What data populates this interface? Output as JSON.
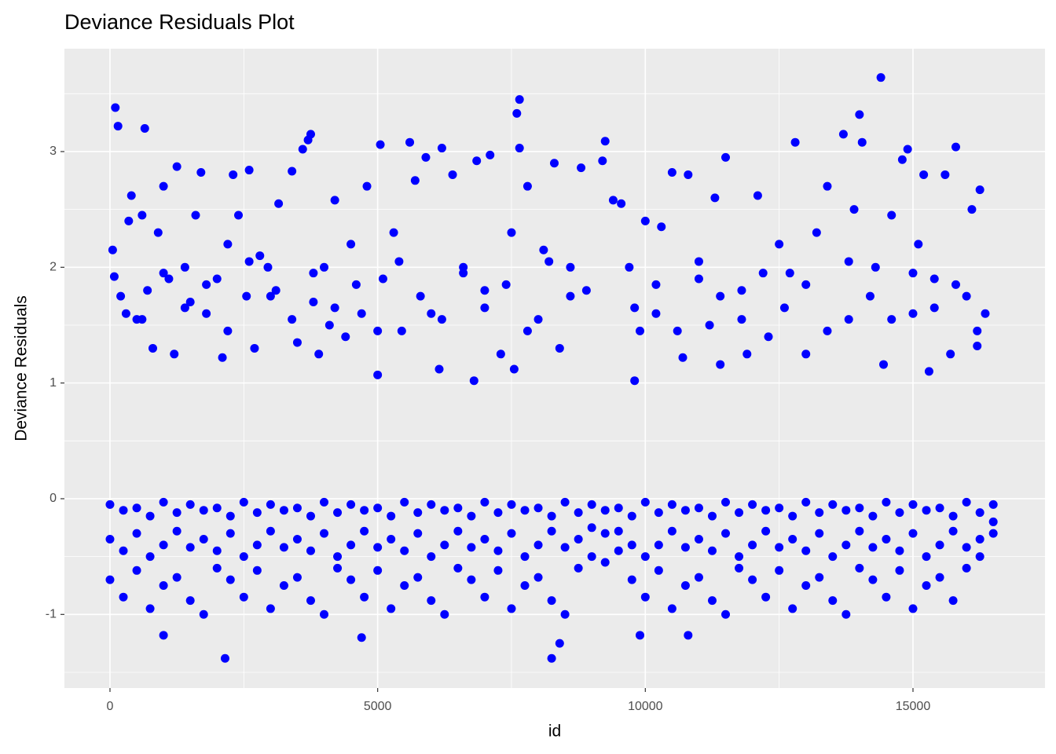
{
  "chart_data": {
    "type": "scatter",
    "title": "Deviance Residuals Plot",
    "x_label": "id",
    "y_label": "Deviance Residuals",
    "color": "#0000ff",
    "grid": true,
    "xlim": [
      -851,
      17466
    ],
    "ylim": [
      -1.636,
      3.889
    ],
    "xticks": [
      0,
      5000,
      10000,
      15000
    ],
    "yticks": [
      -1,
      0,
      1,
      2,
      3
    ],
    "x_minor_breaks": [
      2500,
      7500,
      12500
    ],
    "y_minor_breaks": [
      -1.5,
      -0.5,
      0.5,
      1.5,
      2.5,
      3.5
    ],
    "x": [
      100,
      150,
      650,
      50,
      80,
      300,
      350,
      400,
      500,
      600,
      700,
      800,
      900,
      1000,
      1100,
      1200,
      1250,
      1400,
      1500,
      1600,
      1700,
      1800,
      2000,
      2100,
      2200,
      2300,
      2400,
      2550,
      2600,
      2700,
      2800,
      2950,
      3100,
      3150,
      3400,
      3500,
      3600,
      3700,
      3750,
      3800,
      3900,
      4000,
      4100,
      4200,
      4400,
      4500,
      4700,
      4800,
      5000,
      5050,
      5100,
      5300,
      5450,
      5600,
      5700,
      5900,
      6000,
      6150,
      6200,
      6400,
      6600,
      6800,
      6850,
      7000,
      7100,
      7300,
      7500,
      7550,
      7600,
      7650,
      7650,
      7800,
      8000,
      8100,
      8300,
      8400,
      8600,
      8800,
      8900,
      9200,
      9250,
      9400,
      9550,
      9700,
      9800,
      9900,
      10000,
      10200,
      10300,
      10500,
      10700,
      10800,
      11000,
      11200,
      11300,
      11400,
      11500,
      11800,
      11900,
      12100,
      12300,
      12500,
      12700,
      12800,
      13000,
      13200,
      13400,
      13700,
      13800,
      13900,
      14000,
      14050,
      14300,
      14400,
      14450,
      14600,
      14800,
      14900,
      15000,
      15100,
      15200,
      15300,
      15400,
      15600,
      15700,
      15800,
      16000,
      16100,
      16200,
      16250,
      16350,
      200,
      600,
      1000,
      1400,
      1800,
      2200,
      2600,
      3000,
      3400,
      3800,
      4200,
      4600,
      5000,
      5400,
      5800,
      6200,
      6600,
      7000,
      7400,
      7800,
      8200,
      8600,
      9800,
      10200,
      10600,
      11000,
      11400,
      11800,
      12200,
      12600,
      13000,
      13400,
      13800,
      14200,
      14600,
      15000,
      15400,
      15800,
      16200,
      0,
      0,
      0,
      250,
      250,
      250,
      500,
      500,
      500,
      750,
      750,
      750,
      1000,
      1000,
      1000,
      1250,
      1250,
      1250,
      1500,
      1500,
      1500,
      1750,
      1750,
      1750,
      2000,
      2000,
      2000,
      2250,
      2250,
      2250,
      2500,
      2500,
      2500,
      2750,
      2750,
      2750,
      3000,
      3000,
      3000,
      3250,
      3250,
      3250,
      3500,
      3500,
      3500,
      3750,
      3750,
      3750,
      4000,
      4000,
      4000,
      4250,
      4250,
      4250,
      4500,
      4500,
      4500,
      4750,
      4750,
      4750,
      5000,
      5000,
      5000,
      5250,
      5250,
      5250,
      5500,
      5500,
      5500,
      5750,
      5750,
      5750,
      6000,
      6000,
      6000,
      6250,
      6250,
      6250,
      6500,
      6500,
      6500,
      6750,
      6750,
      6750,
      7000,
      7000,
      7000,
      7250,
      7250,
      7250,
      7500,
      7500,
      7500,
      7750,
      7750,
      7750,
      8000,
      8000,
      8000,
      8250,
      8250,
      8250,
      8500,
      8500,
      8500,
      8750,
      8750,
      8750,
      9000,
      9000,
      9000,
      9250,
      9250,
      9250,
      9500,
      9500,
      9500,
      9750,
      9750,
      9750,
      10000,
      10000,
      10000,
      10250,
      10250,
      10250,
      10500,
      10500,
      10500,
      10750,
      10750,
      10750,
      11000,
      11000,
      11000,
      11250,
      11250,
      11250,
      11500,
      11500,
      11500,
      11750,
      11750,
      11750,
      12000,
      12000,
      12000,
      12250,
      12250,
      12250,
      12500,
      12500,
      12500,
      12750,
      12750,
      12750,
      13000,
      13000,
      13000,
      13250,
      13250,
      13250,
      13500,
      13500,
      13500,
      13750,
      13750,
      13750,
      14000,
      14000,
      14000,
      14250,
      14250,
      14250,
      14500,
      14500,
      14500,
      14750,
      14750,
      14750,
      15000,
      15000,
      15000,
      15250,
      15250,
      15250,
      15500,
      15500,
      15500,
      15750,
      15750,
      15750,
      16000,
      16000,
      16000,
      16250,
      16250,
      16250,
      16500,
      16500,
      16500,
      2150,
      8250,
      1000,
      4700,
      9900,
      10800,
      8400
    ],
    "values": [
      3.38,
      3.22,
      3.2,
      2.15,
      1.92,
      1.6,
      2.4,
      2.62,
      1.55,
      2.45,
      1.8,
      1.3,
      2.3,
      2.7,
      1.9,
      1.25,
      2.87,
      2.0,
      1.7,
      2.45,
      2.82,
      1.6,
      1.9,
      1.22,
      2.2,
      2.8,
      2.45,
      1.75,
      2.84,
      1.3,
      2.1,
      2.0,
      1.8,
      2.55,
      2.83,
      1.35,
      3.02,
      3.1,
      3.15,
      1.7,
      1.25,
      2.0,
      1.5,
      2.58,
      1.4,
      2.2,
      1.6,
      2.7,
      1.07,
      3.06,
      1.9,
      2.3,
      1.45,
      3.08,
      2.75,
      2.95,
      1.6,
      1.12,
      3.03,
      2.8,
      2.0,
      1.02,
      2.92,
      1.8,
      2.97,
      1.25,
      2.3,
      1.12,
      3.33,
      3.45,
      3.03,
      2.7,
      1.55,
      2.15,
      2.9,
      1.3,
      2.0,
      2.86,
      1.8,
      2.92,
      3.09,
      2.58,
      2.55,
      2.0,
      1.02,
      1.45,
      2.4,
      1.6,
      2.35,
      2.82,
      1.22,
      2.8,
      1.9,
      1.5,
      2.6,
      1.16,
      2.95,
      1.8,
      1.25,
      2.62,
      1.4,
      2.2,
      1.95,
      3.08,
      1.25,
      2.3,
      2.7,
      3.15,
      1.55,
      2.5,
      3.32,
      3.08,
      2.0,
      3.64,
      1.16,
      2.45,
      2.93,
      3.02,
      1.6,
      2.2,
      2.8,
      1.1,
      1.9,
      2.8,
      1.25,
      3.04,
      1.75,
      2.5,
      1.32,
      2.67,
      1.6,
      1.75,
      1.55,
      1.95,
      1.65,
      1.85,
      1.45,
      2.05,
      1.75,
      1.55,
      1.95,
      1.65,
      1.85,
      1.45,
      2.05,
      1.75,
      1.55,
      1.95,
      1.65,
      1.85,
      1.45,
      2.05,
      1.75,
      1.65,
      1.85,
      1.45,
      2.05,
      1.75,
      1.55,
      1.95,
      1.65,
      1.85,
      1.45,
      2.05,
      1.75,
      1.55,
      1.95,
      1.65,
      1.85,
      1.45,
      -0.05,
      -0.35,
      -0.7,
      -0.1,
      -0.45,
      -0.85,
      -0.08,
      -0.3,
      -0.62,
      -0.15,
      -0.5,
      -0.95,
      -0.03,
      -0.4,
      -0.75,
      -0.12,
      -0.28,
      -0.68,
      -0.05,
      -0.42,
      -0.88,
      -0.1,
      -0.35,
      -1.0,
      -0.08,
      -0.45,
      -0.6,
      -0.15,
      -0.3,
      -0.7,
      -0.03,
      -0.5,
      -0.85,
      -0.12,
      -0.4,
      -0.62,
      -0.05,
      -0.28,
      -0.95,
      -0.1,
      -0.42,
      -0.75,
      -0.08,
      -0.35,
      -0.68,
      -0.15,
      -0.45,
      -0.88,
      -0.03,
      -0.3,
      -1.0,
      -0.12,
      -0.5,
      -0.6,
      -0.05,
      -0.4,
      -0.7,
      -0.1,
      -0.28,
      -0.85,
      -0.08,
      -0.42,
      -0.62,
      -0.15,
      -0.35,
      -0.95,
      -0.03,
      -0.45,
      -0.75,
      -0.12,
      -0.3,
      -0.68,
      -0.05,
      -0.5,
      -0.88,
      -0.1,
      -0.4,
      -1.0,
      -0.08,
      -0.28,
      -0.6,
      -0.15,
      -0.42,
      -0.7,
      -0.03,
      -0.35,
      -0.85,
      -0.12,
      -0.45,
      -0.62,
      -0.05,
      -0.3,
      -0.95,
      -0.1,
      -0.5,
      -0.75,
      -0.08,
      -0.4,
      -0.68,
      -0.15,
      -0.28,
      -0.88,
      -0.03,
      -0.42,
      -1.0,
      -0.12,
      -0.35,
      -0.6,
      -0.05,
      -0.25,
      -0.5,
      -0.1,
      -0.3,
      -0.55,
      -0.08,
      -0.28,
      -0.45,
      -0.15,
      -0.4,
      -0.7,
      -0.03,
      -0.5,
      -0.85,
      -0.12,
      -0.4,
      -0.62,
      -0.05,
      -0.28,
      -0.95,
      -0.1,
      -0.42,
      -0.75,
      -0.08,
      -0.35,
      -0.68,
      -0.15,
      -0.45,
      -0.88,
      -0.03,
      -0.3,
      -1.0,
      -0.12,
      -0.5,
      -0.6,
      -0.05,
      -0.4,
      -0.7,
      -0.1,
      -0.28,
      -0.85,
      -0.08,
      -0.42,
      -0.62,
      -0.15,
      -0.35,
      -0.95,
      -0.03,
      -0.45,
      -0.75,
      -0.12,
      -0.3,
      -0.68,
      -0.05,
      -0.5,
      -0.88,
      -0.1,
      -0.4,
      -1.0,
      -0.08,
      -0.28,
      -0.6,
      -0.15,
      -0.42,
      -0.7,
      -0.03,
      -0.35,
      -0.85,
      -0.12,
      -0.45,
      -0.62,
      -0.05,
      -0.3,
      -0.95,
      -0.1,
      -0.5,
      -0.75,
      -0.08,
      -0.4,
      -0.68,
      -0.15,
      -0.28,
      -0.88,
      -0.03,
      -0.42,
      -0.6,
      -0.12,
      -0.35,
      -0.5,
      -0.05,
      -0.2,
      -0.3,
      -1.38,
      -1.38,
      -1.18,
      -1.2,
      -1.18,
      -1.18,
      -1.25
    ]
  }
}
